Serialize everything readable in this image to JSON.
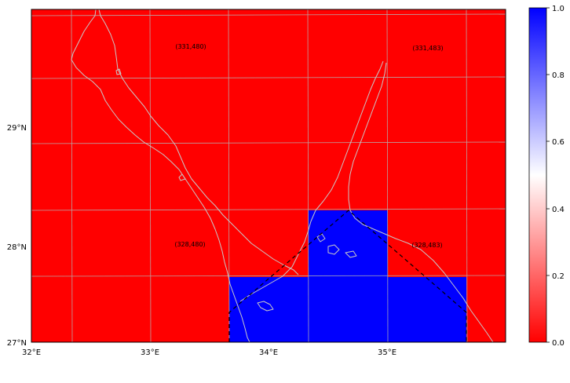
{
  "map": {
    "lon_range": [
      32.0,
      36.0
    ],
    "lat_range": [
      27.0,
      29.0
    ],
    "background_color": "#ff0000",
    "cell_color": "#0000ff",
    "coastline_color": "#c8c8c8",
    "gridline_color": "#b4b4b4",
    "x_ticks": [
      {
        "value": 32,
        "label": "32°E"
      },
      {
        "value": 33,
        "label": "33°E"
      },
      {
        "value": 34,
        "label": "34°E"
      },
      {
        "value": 35,
        "label": "35°E"
      }
    ],
    "y_ticks": [
      {
        "value": 27,
        "label": "27°N"
      },
      {
        "value": 28,
        "label": "28°N"
      },
      {
        "value": 29,
        "label": "29°N"
      }
    ],
    "cell_labels": [
      {
        "text": "(331,480)"
      },
      {
        "text": "(331,483)"
      },
      {
        "text": "(328,480)"
      },
      {
        "text": "(328,483)"
      }
    ]
  },
  "colorbar": {
    "range": [
      0.0,
      1.0
    ],
    "color_low": "#ff0000",
    "color_mid": "#ffffff",
    "color_high": "#0000ff",
    "ticks": [
      "0.0",
      "0.2",
      "0.4",
      "0.6",
      "0.8",
      "1.0"
    ]
  }
}
